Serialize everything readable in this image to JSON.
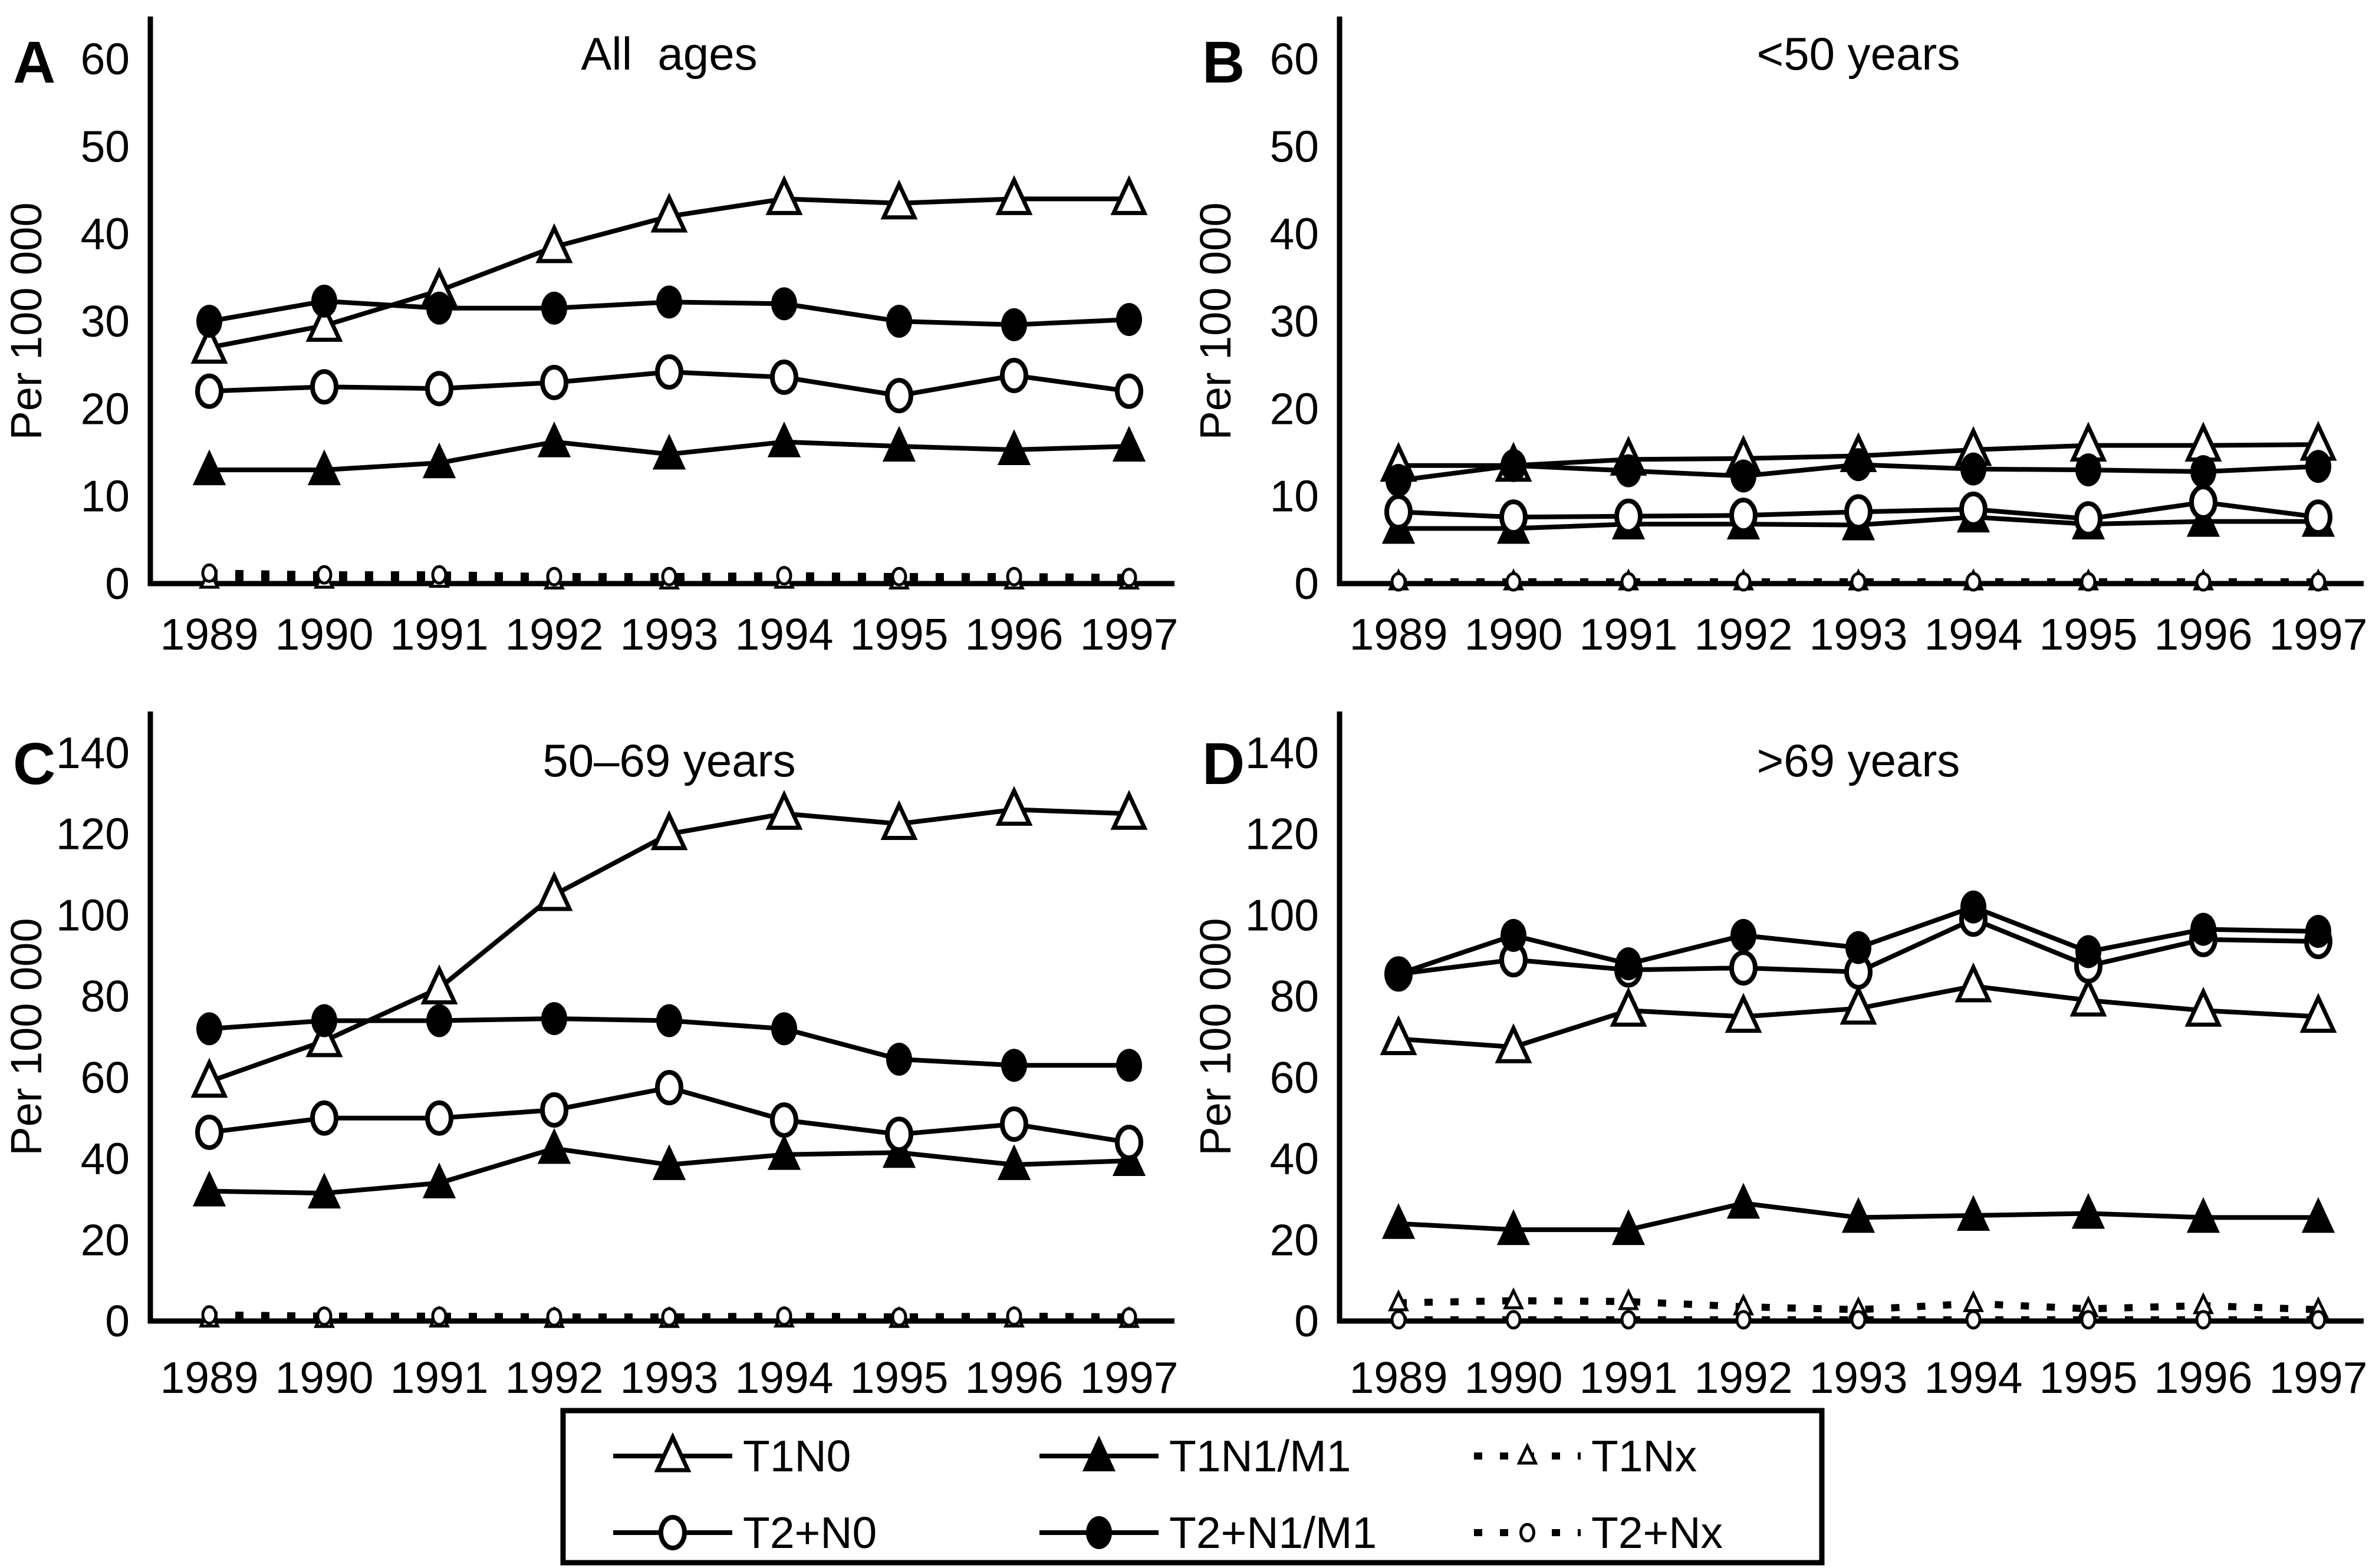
{
  "colors": {
    "ink": "#000000",
    "background": "#ffffff"
  },
  "figure": {
    "y_axis_label": "Per 100 000"
  },
  "legend": {
    "position": "bottom-center",
    "items": [
      {
        "label": "T1N0"
      },
      {
        "label": "T1N1/M1"
      },
      {
        "label": "T1Nx"
      },
      {
        "label": "T2+N0"
      },
      {
        "label": "T2+N1/M1"
      },
      {
        "label": "T2+Nx"
      }
    ]
  },
  "chart_data": [
    {
      "type": "line",
      "panel_label": "A",
      "title": "All  ages",
      "xlabel": "",
      "ylabel": "Per 100 000",
      "x": [
        1989,
        1990,
        1991,
        1992,
        1993,
        1994,
        1995,
        1996,
        1997
      ],
      "ylim": [
        0,
        60
      ],
      "ytick_step": 10,
      "grid": false,
      "series": [
        {
          "name": "T1N0",
          "marker": "open-triangle",
          "line": "solid",
          "values": [
            27,
            29.5,
            33.5,
            38.5,
            42,
            44,
            43.5,
            44,
            44
          ]
        },
        {
          "name": "T1N1/M1",
          "marker": "filled-triangle",
          "line": "solid",
          "values": [
            13,
            13,
            13.8,
            16.2,
            14.8,
            16.2,
            15.7,
            15.3,
            15.7
          ]
        },
        {
          "name": "T1Nx",
          "marker": "small-open-triangle",
          "line": "dashed",
          "values": [
            0.4,
            0.4,
            0.5,
            0.3,
            0.3,
            0.4,
            0.3,
            0.3,
            0.3
          ]
        },
        {
          "name": "T2+N0",
          "marker": "open-circle",
          "line": "solid",
          "values": [
            22,
            22.5,
            22.3,
            23,
            24.2,
            23.6,
            21.5,
            23.8,
            22
          ]
        },
        {
          "name": "T2+N1/M1",
          "marker": "filled-circle",
          "line": "solid",
          "values": [
            30,
            32.3,
            31.5,
            31.5,
            32.2,
            32,
            30,
            29.6,
            30.2
          ]
        },
        {
          "name": "T2+Nx",
          "marker": "small-open-circle",
          "line": "dashed",
          "values": [
            1.2,
            1,
            1,
            0.8,
            0.8,
            0.9,
            0.8,
            0.8,
            0.7
          ]
        }
      ]
    },
    {
      "type": "line",
      "panel_label": "B",
      "title": "<50 years",
      "xlabel": "",
      "ylabel": "Per 100 000",
      "x": [
        1989,
        1990,
        1991,
        1992,
        1993,
        1994,
        1995,
        1996,
        1997
      ],
      "ylim": [
        0,
        60
      ],
      "ytick_step": 10,
      "grid": false,
      "series": [
        {
          "name": "T1N0",
          "marker": "open-triangle",
          "line": "solid",
          "values": [
            13.5,
            13.5,
            14.2,
            14.3,
            14.6,
            15.3,
            15.8,
            15.8,
            15.9
          ]
        },
        {
          "name": "T1N1/M1",
          "marker": "filled-triangle",
          "line": "solid",
          "values": [
            6.3,
            6.3,
            6.8,
            6.8,
            6.7,
            7.6,
            6.8,
            7.1,
            7.1
          ]
        },
        {
          "name": "T1Nx",
          "marker": "small-open-triangle",
          "line": "dashed",
          "values": [
            0.2,
            0.2,
            0.2,
            0.2,
            0.2,
            0.2,
            0.2,
            0.2,
            0.2
          ]
        },
        {
          "name": "T2+N0",
          "marker": "open-circle",
          "line": "solid",
          "values": [
            8.2,
            7.6,
            7.7,
            7.8,
            8.2,
            8.5,
            7.4,
            9.3,
            7.6
          ]
        },
        {
          "name": "T2+N1/M1",
          "marker": "filled-circle",
          "line": "solid",
          "values": [
            11.8,
            13.5,
            12.9,
            12.3,
            13.6,
            13.1,
            13,
            12.8,
            13.4
          ]
        },
        {
          "name": "T2+Nx",
          "marker": "small-open-circle",
          "line": "dashed",
          "values": [
            0.2,
            0.2,
            0.2,
            0.2,
            0.2,
            0.2,
            0.2,
            0.2,
            0.2
          ]
        }
      ]
    },
    {
      "type": "line",
      "panel_label": "C",
      "title": "50–69 years",
      "xlabel": "",
      "ylabel": "Per 100 000",
      "x": [
        1989,
        1990,
        1991,
        1992,
        1993,
        1994,
        1995,
        1996,
        1997
      ],
      "ylim": [
        0,
        140
      ],
      "ytick_step": 20,
      "grid": false,
      "series": [
        {
          "name": "T1N0",
          "marker": "open-triangle",
          "line": "solid",
          "values": [
            59,
            69,
            82,
            105,
            120,
            125,
            122.5,
            126,
            125
          ]
        },
        {
          "name": "T1N1/M1",
          "marker": "filled-triangle",
          "line": "solid",
          "values": [
            32,
            31.5,
            34,
            42.5,
            38.5,
            41,
            41.5,
            38.5,
            39.5
          ]
        },
        {
          "name": "T1Nx",
          "marker": "small-open-triangle",
          "line": "dashed",
          "values": [
            0.5,
            0.4,
            0.5,
            0.4,
            0.4,
            0.5,
            0.4,
            0.5,
            0.4
          ]
        },
        {
          "name": "T2+N0",
          "marker": "open-circle",
          "line": "solid",
          "values": [
            46.5,
            50,
            50,
            52,
            57.5,
            49.5,
            46,
            48.5,
            44
          ]
        },
        {
          "name": "T2+N1/M1",
          "marker": "filled-circle",
          "line": "solid",
          "values": [
            72,
            74,
            74,
            74.5,
            74,
            72,
            64.5,
            63,
            63
          ]
        },
        {
          "name": "T2+Nx",
          "marker": "small-open-circle",
          "line": "dashed",
          "values": [
            1.5,
            1.2,
            1.2,
            1,
            1,
            1.2,
            1,
            1.2,
            1
          ]
        }
      ]
    },
    {
      "type": "line",
      "panel_label": "D",
      "title": ">69 years",
      "xlabel": "",
      "ylabel": "Per 100 000",
      "x": [
        1989,
        1990,
        1991,
        1992,
        1993,
        1994,
        1995,
        1996,
        1997
      ],
      "ylim": [
        0,
        140
      ],
      "ytick_step": 20,
      "grid": false,
      "series": [
        {
          "name": "T1N0",
          "marker": "open-triangle",
          "line": "solid",
          "values": [
            69.5,
            67.5,
            76.5,
            75,
            77,
            82.5,
            79,
            76.5,
            75
          ]
        },
        {
          "name": "T1N1/M1",
          "marker": "filled-triangle",
          "line": "solid",
          "values": [
            24,
            22.5,
            22.5,
            29,
            25.5,
            26,
            26.5,
            25.5,
            25.5
          ]
        },
        {
          "name": "T1Nx",
          "marker": "small-open-triangle",
          "line": "dashed",
          "values": [
            4.5,
            5,
            4.8,
            3.5,
            2.8,
            4.3,
            3,
            3.8,
            2.8
          ]
        },
        {
          "name": "T2+N0",
          "marker": "open-circle",
          "line": "solid",
          "values": [
            85.5,
            89,
            86.5,
            87,
            86,
            99,
            87.5,
            94,
            93.5
          ]
        },
        {
          "name": "T2+N1/M1",
          "marker": "filled-circle",
          "line": "solid",
          "values": [
            85.5,
            95,
            88,
            95,
            92,
            102,
            91,
            96.5,
            96
          ]
        },
        {
          "name": "T2+Nx",
          "marker": "small-open-circle",
          "line": "dashed",
          "values": [
            0.3,
            0.3,
            0.3,
            0.3,
            0.3,
            0.3,
            0.3,
            0.3,
            0.3
          ]
        }
      ]
    }
  ]
}
